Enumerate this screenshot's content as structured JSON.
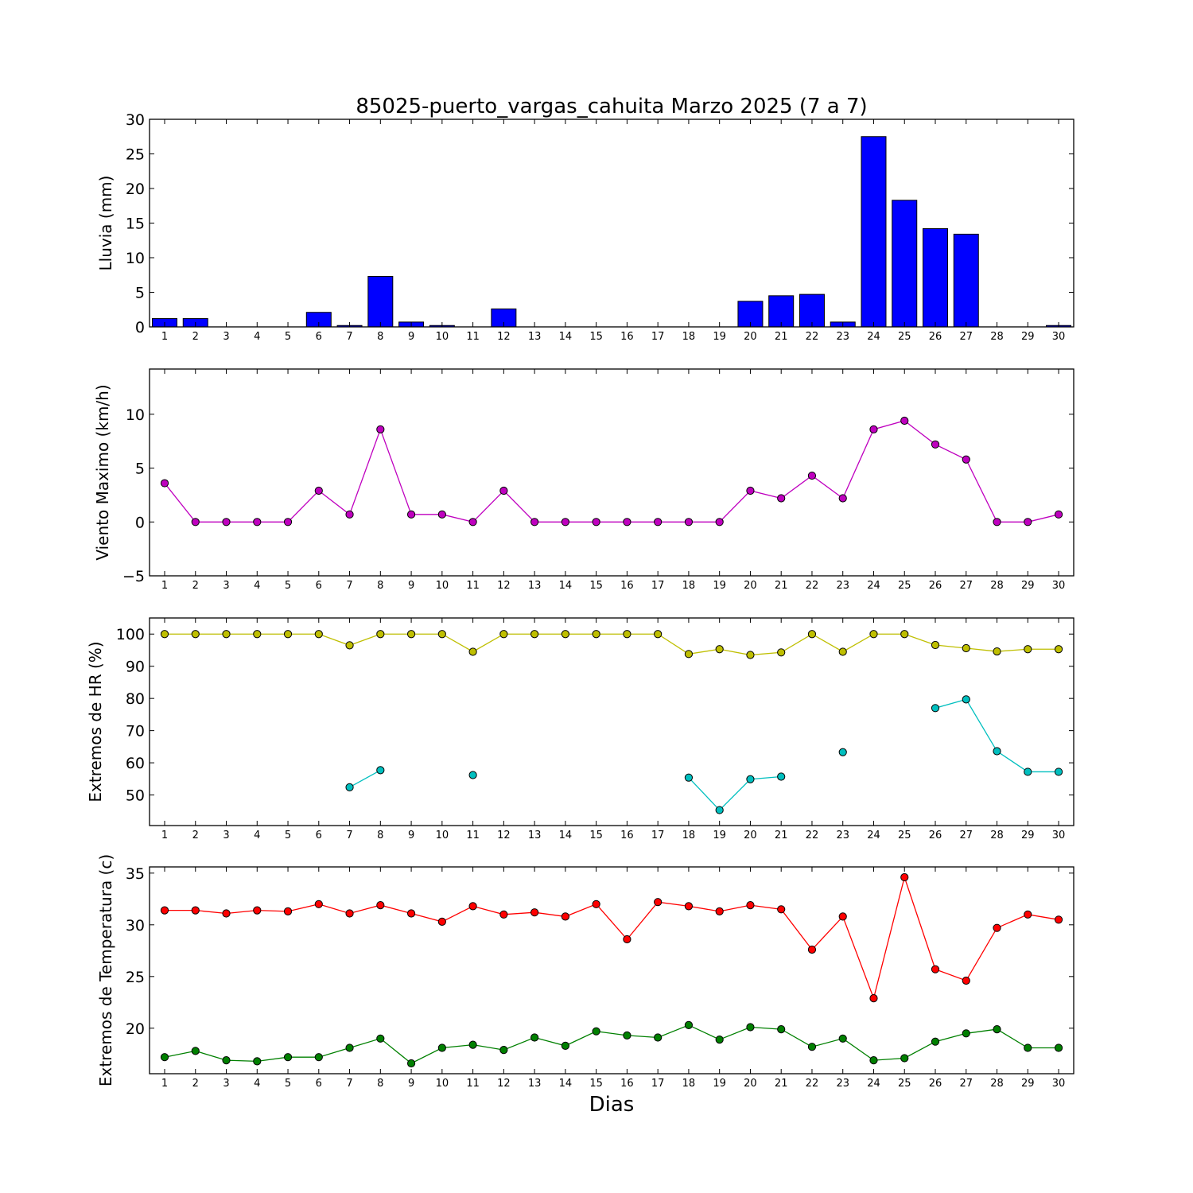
{
  "figure": {
    "title": "85025-puerto_vargas_cahuita Marzo 2025  (7 a 7)",
    "xlabel": "Dias"
  },
  "chart_data": [
    {
      "type": "bar",
      "ylabel": "Lluvia (mm)",
      "ylim": [
        0,
        30
      ],
      "yticks": [
        0,
        5,
        10,
        15,
        20,
        25,
        30
      ],
      "categories": [
        "1",
        "2",
        "3",
        "4",
        "5",
        "6",
        "7",
        "8",
        "9",
        "10",
        "11",
        "12",
        "13",
        "14",
        "15",
        "16",
        "17",
        "18",
        "19",
        "20",
        "21",
        "22",
        "23",
        "24",
        "25",
        "26",
        "27",
        "28",
        "29",
        "30"
      ],
      "series": [
        {
          "color": "#0000ff",
          "values": [
            1.2,
            1.2,
            0,
            0,
            0,
            2.1,
            0.2,
            7.3,
            0.7,
            0.2,
            0,
            2.6,
            0,
            0,
            0,
            0,
            0,
            0,
            0,
            3.7,
            4.5,
            4.7,
            0.7,
            27.5,
            18.3,
            14.2,
            13.4,
            0,
            0,
            0.2
          ]
        }
      ]
    },
    {
      "type": "line",
      "ylabel": "Viento Maximo (km/h)",
      "ylim": [
        -5,
        14.2
      ],
      "yticks": [
        -5,
        0,
        5,
        10
      ],
      "categories": [
        "1",
        "2",
        "3",
        "4",
        "5",
        "6",
        "7",
        "8",
        "9",
        "10",
        "11",
        "12",
        "13",
        "14",
        "15",
        "16",
        "17",
        "18",
        "19",
        "20",
        "21",
        "22",
        "23",
        "24",
        "25",
        "26",
        "27",
        "28",
        "29",
        "30"
      ],
      "series": [
        {
          "color": "#bf00bf",
          "values": [
            3.6,
            0,
            0,
            0,
            0,
            2.9,
            0.7,
            8.6,
            0.7,
            0.7,
            0,
            2.9,
            0,
            0,
            0,
            0,
            0,
            0,
            0,
            2.9,
            2.2,
            4.3,
            2.2,
            8.6,
            9.4,
            7.2,
            5.8,
            0,
            0,
            0.7
          ]
        }
      ]
    },
    {
      "type": "line",
      "ylabel": "Extremos de HR (%)",
      "ylim": [
        40.5,
        105
      ],
      "yticks": [
        50,
        60,
        70,
        80,
        90,
        100
      ],
      "categories": [
        "1",
        "2",
        "3",
        "4",
        "5",
        "6",
        "7",
        "8",
        "9",
        "10",
        "11",
        "12",
        "13",
        "14",
        "15",
        "16",
        "17",
        "18",
        "19",
        "20",
        "21",
        "22",
        "23",
        "24",
        "25",
        "26",
        "27",
        "28",
        "29",
        "30"
      ],
      "series": [
        {
          "color": "#bfbf00",
          "values": [
            100,
            100,
            100,
            100,
            100,
            100,
            96.5,
            100,
            100,
            100,
            94.5,
            100,
            100,
            100,
            100,
            100,
            100,
            93.8,
            95.3,
            93.5,
            94.3,
            100,
            94.5,
            100,
            100,
            96.6,
            95.6,
            94.6,
            95.3,
            95.3
          ]
        },
        {
          "color": "#00bfbf",
          "values": [
            null,
            null,
            null,
            null,
            null,
            null,
            52.4,
            57.7,
            null,
            null,
            56.2,
            null,
            null,
            null,
            null,
            null,
            null,
            55.4,
            45.3,
            54.9,
            55.7,
            null,
            63.3,
            null,
            null,
            77.0,
            79.7,
            63.6,
            57.2,
            57.2
          ]
        }
      ]
    },
    {
      "type": "line",
      "ylabel": "Extremos de Temperatura (c)",
      "ylim": [
        15.6,
        35.6
      ],
      "yticks": [
        20,
        25,
        30,
        35
      ],
      "categories": [
        "1",
        "2",
        "3",
        "4",
        "5",
        "6",
        "7",
        "8",
        "9",
        "10",
        "11",
        "12",
        "13",
        "14",
        "15",
        "16",
        "17",
        "18",
        "19",
        "20",
        "21",
        "22",
        "23",
        "24",
        "25",
        "26",
        "27",
        "28",
        "29",
        "30"
      ],
      "series": [
        {
          "color": "#ff0000",
          "values": [
            31.4,
            31.4,
            31.1,
            31.4,
            31.3,
            32.0,
            31.1,
            31.9,
            31.1,
            30.3,
            31.8,
            31.0,
            31.2,
            30.8,
            32.0,
            28.6,
            32.2,
            31.8,
            31.3,
            31.9,
            31.5,
            27.6,
            30.8,
            22.9,
            34.6,
            25.7,
            24.6,
            29.7,
            31.0,
            30.5
          ]
        },
        {
          "color": "#008000",
          "values": [
            17.2,
            17.8,
            16.9,
            16.8,
            17.2,
            17.2,
            18.1,
            19.0,
            16.6,
            18.1,
            18.4,
            17.9,
            19.1,
            18.3,
            19.7,
            19.3,
            19.1,
            20.3,
            18.9,
            20.1,
            19.9,
            18.2,
            19.0,
            16.9,
            17.1,
            18.7,
            19.5,
            19.9,
            18.1,
            18.1
          ]
        }
      ]
    }
  ]
}
